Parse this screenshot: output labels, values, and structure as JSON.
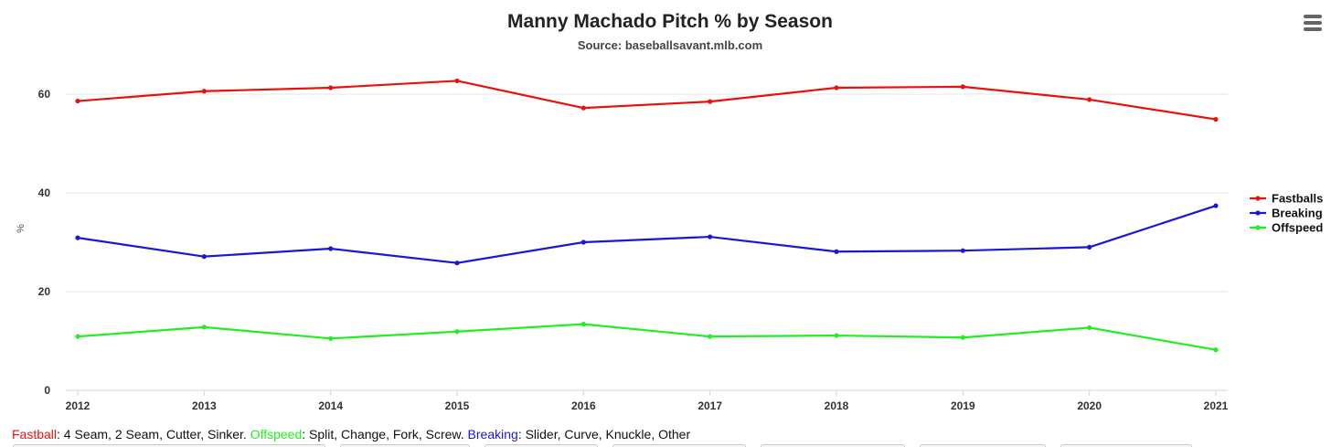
{
  "chart_data": {
    "type": "line",
    "title": "Manny Machado Pitch % by Season",
    "subtitle": "Source: baseballsavant.mlb.com",
    "xlabel": "",
    "ylabel": "%",
    "categories": [
      "2012",
      "2013",
      "2014",
      "2015",
      "2016",
      "2017",
      "2018",
      "2019",
      "2020",
      "2021"
    ],
    "ylim": [
      0,
      60
    ],
    "yticks": [
      0,
      20,
      40,
      60
    ],
    "grid": true,
    "legend_position": "right",
    "series": [
      {
        "name": "Fastballs",
        "color": "#e8120c",
        "values": [
          58.6,
          60.6,
          61.3,
          62.7,
          57.2,
          58.5,
          61.3,
          61.5,
          58.9,
          54.9
        ]
      },
      {
        "name": "Breaking",
        "color": "#1a17d6",
        "values": [
          30.9,
          27.1,
          28.7,
          25.8,
          30.0,
          31.1,
          28.1,
          28.3,
          29.0,
          37.4
        ]
      },
      {
        "name": "Offspeed",
        "color": "#22ee22",
        "values": [
          10.9,
          12.8,
          10.5,
          11.9,
          13.4,
          10.9,
          11.1,
          10.7,
          12.7,
          8.2
        ]
      }
    ]
  },
  "footnote": {
    "fastball_label": "Fastball",
    "fastball_color": "#e8120c",
    "fastball_text": ": 4 Seam, 2 Seam, Cutter, Sinker.",
    "offspeed_label": "Offspeed",
    "offspeed_color": "#22ee22",
    "offspeed_text": ": Split, Change, Fork, Screw.",
    "breaking_label": "Breaking",
    "breaking_color": "#1a17d6",
    "breaking_text": ": Slider, Curve, Knuckle, Other"
  },
  "menu": {
    "icon": "hamburger-menu-icon"
  }
}
